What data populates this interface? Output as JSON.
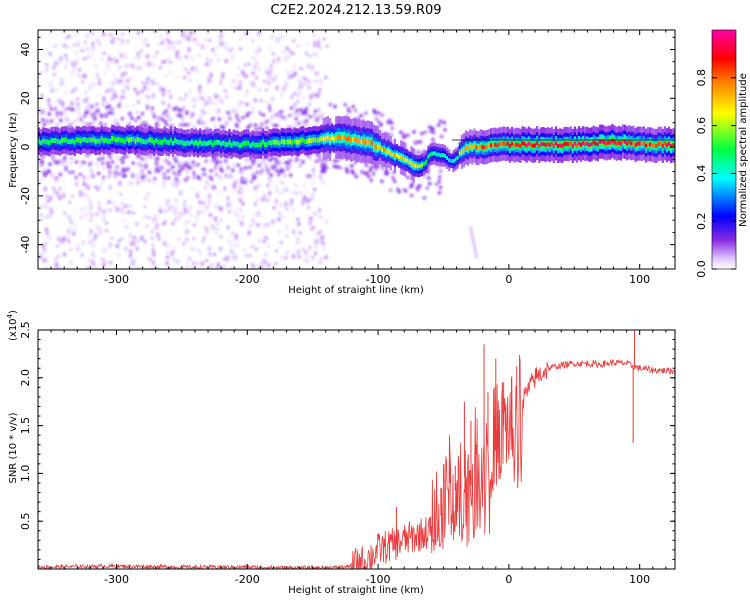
{
  "figure_title": "C2E2.2024.212.13.59.R09",
  "chart_data": [
    {
      "type": "heatmap",
      "xlabel": "Height of straight line (km)",
      "ylabel": "Frequency (Hz)",
      "xlim": [
        -360,
        127
      ],
      "ylim": [
        -50,
        48
      ],
      "xticks": [
        -300,
        -200,
        -100,
        0,
        100
      ],
      "yticks": [
        -40,
        -20,
        0,
        20,
        40
      ],
      "colorbar": {
        "label": "Normalized spectral amplitude",
        "ticks": [
          "0.0",
          "0.2",
          "0.4",
          "0.6",
          "0.8"
        ],
        "tick_values": [
          0.0,
          0.2,
          0.4,
          0.6,
          0.8
        ],
        "range": [
          0,
          1
        ],
        "colormap": "rainbow (white/violet → blue → cyan → green → yellow → red → magenta)"
      },
      "ridge": {
        "description": "Main spectral line frequency vs height",
        "x": [
          -360,
          -300,
          -250,
          -200,
          -150,
          -130,
          -110,
          -100,
          -90,
          -80,
          -70,
          -65,
          -60,
          -55,
          -50,
          -45,
          -40,
          -35,
          -30,
          -20,
          -10,
          0,
          20,
          50,
          80,
          100,
          127
        ],
        "y": [
          2,
          3,
          2,
          1,
          3,
          4,
          2,
          0,
          -3,
          -5,
          -8,
          -7,
          -2,
          -3,
          -4,
          -6,
          -4,
          -1,
          0,
          0,
          1,
          1,
          1,
          1,
          2,
          1,
          1
        ],
        "peak_amplitude": [
          0.5,
          0.55,
          0.5,
          0.5,
          0.6,
          0.75,
          0.8,
          0.75,
          0.7,
          0.7,
          0.65,
          0.5,
          0.45,
          0.45,
          0.45,
          0.4,
          0.5,
          0.75,
          0.8,
          0.85,
          0.85,
          0.9,
          0.95,
          0.95,
          0.95,
          0.9,
          0.95
        ]
      },
      "noise_region": {
        "x_range": [
          -360,
          -150
        ],
        "y_range": [
          -50,
          48
        ],
        "amplitude": 0.05
      }
    },
    {
      "type": "line",
      "xlabel": "Height of straight line (km)",
      "ylabel": "SNR (10 * v/v)",
      "y_multiplier_label": "(x10",
      "y_multiplier_exp": "4",
      "xlim": [
        -360,
        127
      ],
      "ylim": [
        0,
        2.5
      ],
      "xticks": [
        -300,
        -200,
        -100,
        0,
        100
      ],
      "yticks": [
        0.5,
        1.0,
        1.5,
        2.0,
        2.5
      ],
      "ytick_labels": [
        "0.5",
        "1.0",
        "1.5",
        "2.0",
        "2.5"
      ],
      "series": [
        {
          "color": "#e83a3a",
          "x": [
            -360,
            -300,
            -250,
            -200,
            -150,
            -125,
            -110,
            -100,
            -90,
            -80,
            -70,
            -60,
            -50,
            -45,
            -40,
            -35,
            -30,
            -25,
            -20,
            -15,
            -10,
            -5,
            0,
            5,
            10,
            20,
            30,
            40,
            50,
            60,
            70,
            80,
            90,
            95,
            100,
            110,
            127
          ],
          "y": [
            0.02,
            0.03,
            0.02,
            0.02,
            0.01,
            0.02,
            0.08,
            0.2,
            0.25,
            0.3,
            0.35,
            0.4,
            0.6,
            0.9,
            0.8,
            1.0,
            0.8,
            1.2,
            1.3,
            1.25,
            1.4,
            1.5,
            1.5,
            1.65,
            1.75,
            2.0,
            2.1,
            2.13,
            2.15,
            2.15,
            2.14,
            2.16,
            2.15,
            2.12,
            2.1,
            2.08,
            2.07
          ]
        }
      ],
      "spikes": [
        {
          "x": -86,
          "y": 0.65
        },
        {
          "x": -60,
          "y": 0.55
        },
        {
          "x": -52,
          "y": 0.85
        },
        {
          "x": -45,
          "y": 1.15
        },
        {
          "x": -41,
          "y": 1.08
        },
        {
          "x": -34,
          "y": 1.75
        },
        {
          "x": -29,
          "y": 1.55
        },
        {
          "x": -25,
          "y": 1.3
        },
        {
          "x": -19,
          "y": 2.35
        },
        {
          "x": -16,
          "y": 1.85
        },
        {
          "x": -10,
          "y": 2.2
        },
        {
          "x": -4,
          "y": 1.95
        },
        {
          "x": 2,
          "y": 2.0
        },
        {
          "x": 6,
          "y": 2.12
        },
        {
          "x": 96,
          "y": 2.55
        },
        {
          "x": 95,
          "y": 1.32
        }
      ]
    }
  ]
}
